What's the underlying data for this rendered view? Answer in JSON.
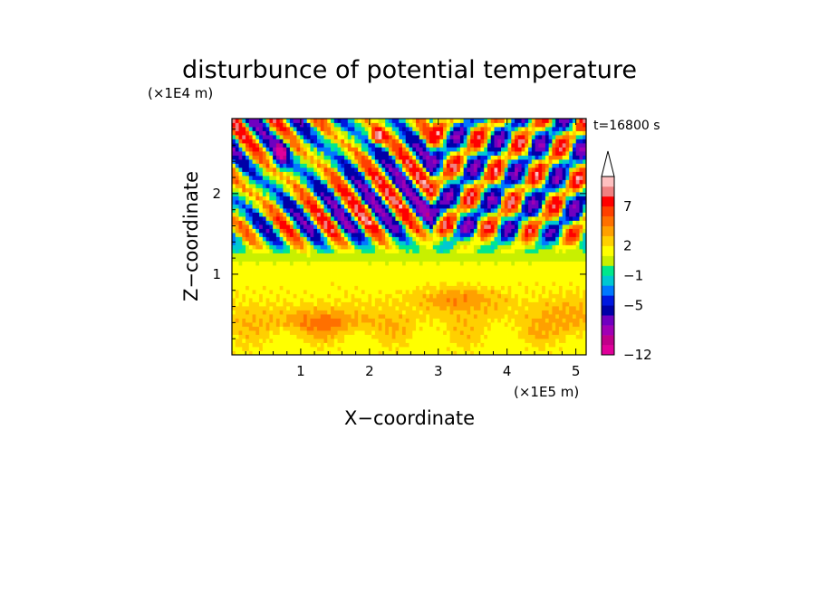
{
  "chart_data": {
    "type": "heatmap",
    "title": "disturbunce of potential temperature",
    "time_label": "t=16800 s",
    "xlabel": "X−coordinate",
    "ylabel": "Z−coordinate",
    "x_unit": "(×1E5 m)",
    "y_unit": "(×1E4 m)",
    "xlim": [
      0,
      5.15
    ],
    "ylim": [
      0,
      2.93
    ],
    "x_ticks": [
      {
        "value": 1,
        "label": "1"
      },
      {
        "value": 2,
        "label": "2"
      },
      {
        "value": 3,
        "label": "3"
      },
      {
        "value": 4,
        "label": "4"
      },
      {
        "value": 5,
        "label": "5"
      }
    ],
    "y_ticks": [
      {
        "value": 1,
        "label": "1"
      },
      {
        "value": 2,
        "label": "2"
      }
    ],
    "colorbar": {
      "colors": [
        "#e0009a",
        "#c0008a",
        "#a000b4",
        "#7000c0",
        "#0000a8",
        "#0018e0",
        "#0078ff",
        "#00c8d2",
        "#00e88c",
        "#c8f000",
        "#ffff00",
        "#ffd000",
        "#ffa000",
        "#ff7000",
        "#ff4000",
        "#ff0000",
        "#f08080",
        "#ffc0c0"
      ],
      "labels": [
        {
          "index": 0,
          "text": "−12"
        },
        {
          "index": 5,
          "text": "−5"
        },
        {
          "index": 8,
          "text": "−1"
        },
        {
          "index": 11,
          "text": "2"
        },
        {
          "index": 15,
          "text": "7"
        }
      ],
      "extend_top": true
    },
    "value_field_description": "Lower half (Z < 1.2) mostly +1 to +3 (yellow/orange); upper half shows alternating positive and negative oblique wave bands, minimum about -12 near x=0.7,z=2.5, maximum about +9 near x=2.1,z=2.7"
  }
}
